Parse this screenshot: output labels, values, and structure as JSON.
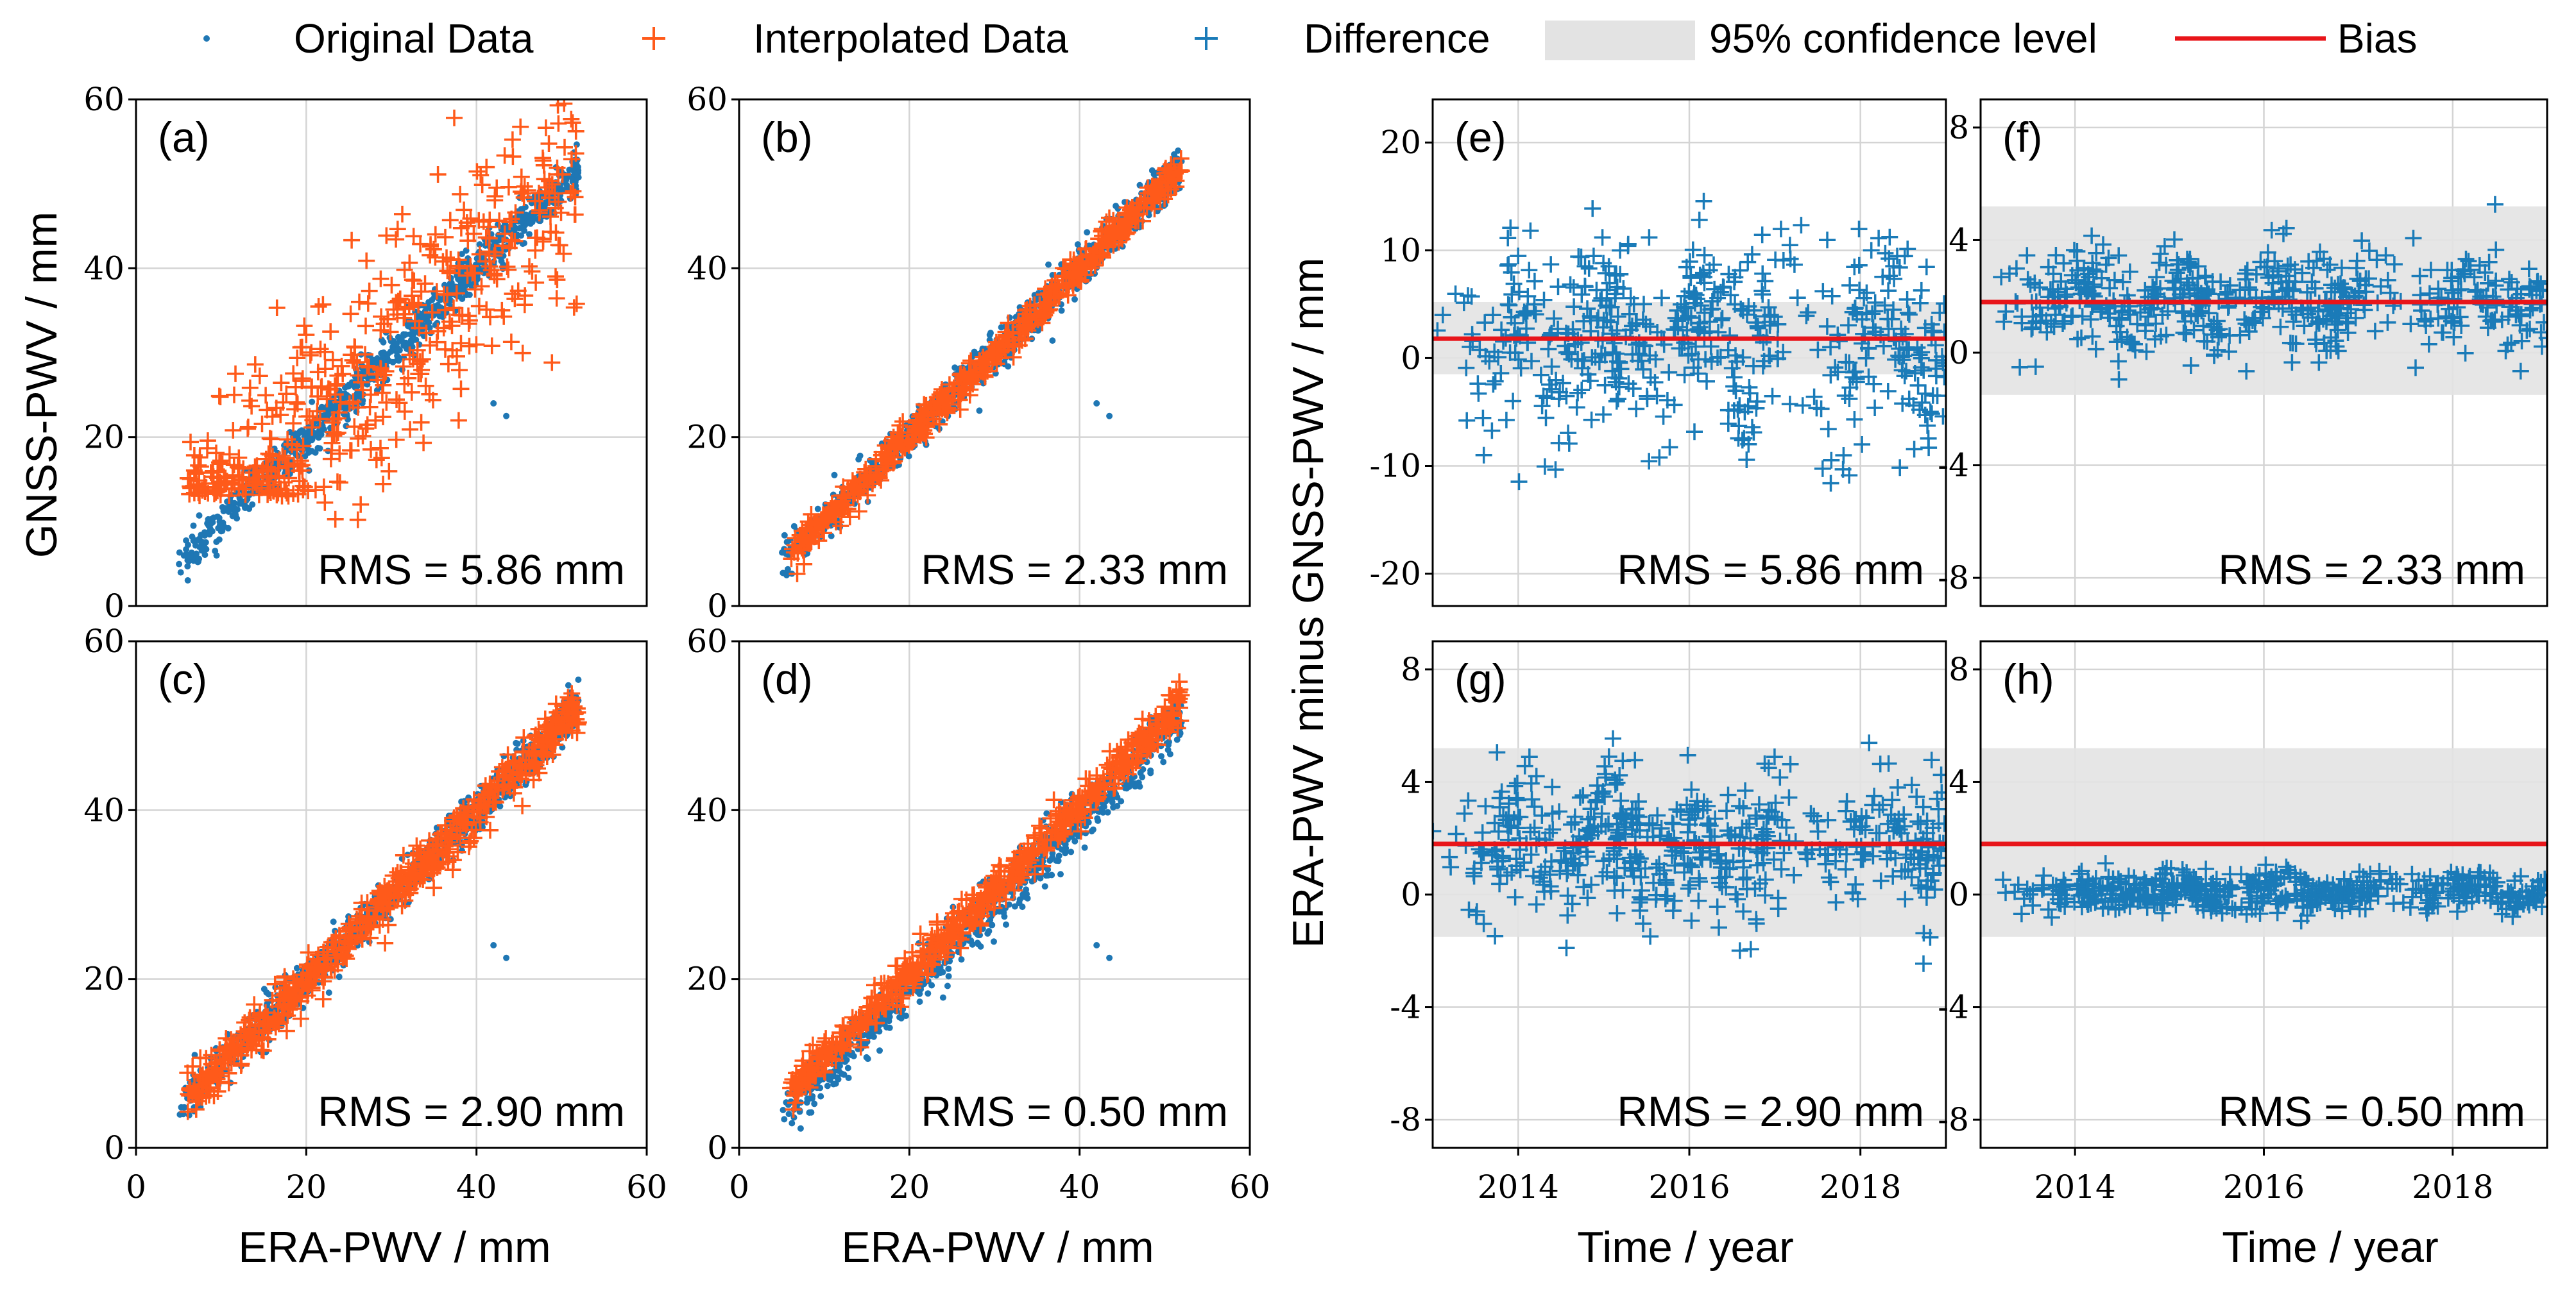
{
  "legend": {
    "original": "Original Data",
    "interpolated": "Interpolated Data",
    "difference": "Difference",
    "confidence": "95% confidence level",
    "bias": "Bias"
  },
  "colors": {
    "original": "#1f77b4",
    "interpolated": "#ff5a1a",
    "difference": "#1a7bb8",
    "bias": "#e8151a",
    "confidence": "#e3e3e3"
  },
  "shared_labels": {
    "scatter_ylabel": "GNSS-PWV / mm",
    "scatter_xlabel": "ERA-PWV / mm",
    "time_ylabel": "ERA-PWV minus GNSS-PWV / mm",
    "time_xlabel": "Time / year"
  },
  "chart_data": [
    {
      "id": "a",
      "panel_label": "(a)",
      "type": "scatter",
      "rms": "RMS = 5.86 mm",
      "xlim": [
        0,
        60
      ],
      "ylim": [
        0,
        60
      ],
      "xticks": [
        0,
        20,
        40,
        60
      ],
      "yticks": [
        0,
        20,
        40,
        60
      ],
      "grid": true,
      "series": [
        {
          "name": "Original Data",
          "relation": "y ≈ x"
        },
        {
          "name": "Interpolated Data",
          "relation": "widely scattered around y = x"
        }
      ]
    },
    {
      "id": "b",
      "panel_label": "(b)",
      "type": "scatter",
      "rms": "RMS = 2.33 mm",
      "xlim": [
        0,
        60
      ],
      "ylim": [
        0,
        60
      ],
      "xticks": [
        0,
        20,
        40,
        60
      ],
      "yticks": [
        0,
        20,
        40,
        60
      ],
      "grid": true,
      "series": [
        {
          "name": "Original Data",
          "relation": "y ≈ x"
        },
        {
          "name": "Interpolated Data",
          "relation": "y ≈ x"
        }
      ]
    },
    {
      "id": "c",
      "panel_label": "(c)",
      "type": "scatter",
      "rms": "RMS = 2.90 mm",
      "xlim": [
        0,
        60
      ],
      "ylim": [
        0,
        60
      ],
      "xticks": [
        0,
        20,
        40,
        60
      ],
      "yticks": [
        0,
        20,
        40,
        60
      ],
      "grid": true,
      "series": [
        {
          "name": "Original Data",
          "relation": "y ≈ x"
        },
        {
          "name": "Interpolated Data",
          "relation": "y ≈ x"
        }
      ]
    },
    {
      "id": "d",
      "panel_label": "(d)",
      "type": "scatter",
      "rms": "RMS = 0.50 mm",
      "xlim": [
        0,
        60
      ],
      "ylim": [
        0,
        60
      ],
      "xticks": [
        0,
        20,
        40,
        60
      ],
      "yticks": [
        0,
        20,
        40,
        60
      ],
      "grid": true,
      "series": [
        {
          "name": "Original Data",
          "relation": "y ≈ x"
        },
        {
          "name": "Interpolated Data",
          "relation": "y ≈ x"
        }
      ]
    },
    {
      "id": "e",
      "panel_label": "(e)",
      "type": "scatter",
      "rms": "RMS = 5.86 mm",
      "xlim": [
        2013,
        2019
      ],
      "ylim": [
        -23,
        24
      ],
      "xticks": [
        2014,
        2016,
        2018
      ],
      "yticks": [
        -20,
        -10,
        0,
        10,
        20
      ],
      "grid": true,
      "bias": 1.8,
      "confidence_band": [
        -1.5,
        5.2
      ],
      "series": [
        {
          "name": "Difference"
        }
      ]
    },
    {
      "id": "f",
      "panel_label": "(f)",
      "type": "scatter",
      "rms": "RMS = 2.33 mm",
      "xlim": [
        2013,
        2019
      ],
      "ylim": [
        -9,
        9
      ],
      "xticks": [
        2014,
        2016,
        2018
      ],
      "yticks": [
        -8,
        -4,
        0,
        4,
        8
      ],
      "grid": true,
      "bias": 1.8,
      "confidence_band": [
        -1.5,
        5.2
      ],
      "series": [
        {
          "name": "Difference"
        }
      ]
    },
    {
      "id": "g",
      "panel_label": "(g)",
      "type": "scatter",
      "rms": "RMS = 2.90 mm",
      "xlim": [
        2013,
        2019
      ],
      "ylim": [
        -9,
        9
      ],
      "xticks": [
        2014,
        2016,
        2018
      ],
      "yticks": [
        -8,
        -4,
        0,
        4,
        8
      ],
      "grid": true,
      "bias": 1.8,
      "confidence_band": [
        -1.5,
        5.2
      ],
      "series": [
        {
          "name": "Difference"
        }
      ]
    },
    {
      "id": "h",
      "panel_label": "(h)",
      "type": "scatter",
      "rms": "RMS = 0.50 mm",
      "xlim": [
        2013,
        2019
      ],
      "ylim": [
        -9,
        9
      ],
      "xticks": [
        2014,
        2016,
        2018
      ],
      "yticks": [
        -8,
        -4,
        0,
        4,
        8
      ],
      "grid": true,
      "bias": 1.8,
      "confidence_band": [
        -1.5,
        5.2
      ],
      "series": [
        {
          "name": "Difference"
        }
      ]
    }
  ]
}
